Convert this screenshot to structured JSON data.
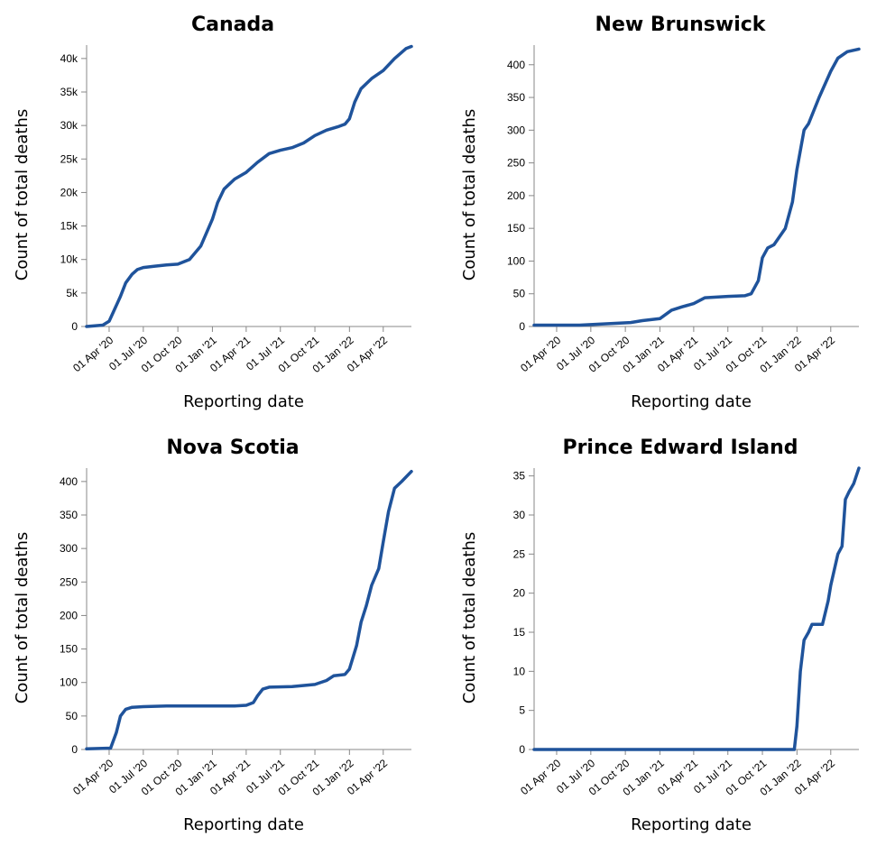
{
  "charts": [
    {
      "title": "Canada",
      "xlabel": "Reporting date",
      "ylabel": "Count of total deaths",
      "x_tick_labels": [
        "01 Apr '20",
        "01 Jul '20",
        "01 Oct '20",
        "01 Jan '21",
        "01 Apr '21",
        "01 Jul '21",
        "01 Oct '21",
        "01 Jan '22",
        "01 Apr '22"
      ],
      "y_tick_labels": [
        "0",
        "5k",
        "10k",
        "15k",
        "20k",
        "25k",
        "30k",
        "35k",
        "40k"
      ]
    },
    {
      "title": "New Brunswick",
      "xlabel": "Reporting date",
      "ylabel": "Count of total deaths",
      "x_tick_labels": [
        "01 Apr '20",
        "01 Jul '20",
        "01 Oct '20",
        "01 Jan '21",
        "01 Apr '21",
        "01 Jul '21",
        "01 Oct '21",
        "01 Jan '22",
        "01 Apr '22"
      ],
      "y_tick_labels": [
        "0",
        "50",
        "100",
        "150",
        "200",
        "250",
        "300",
        "350",
        "400"
      ]
    },
    {
      "title": "Nova Scotia",
      "xlabel": "Reporting date",
      "ylabel": "Count of total deaths",
      "x_tick_labels": [
        "01 Apr '20",
        "01 Jul '20",
        "01 Oct '20",
        "01 Jan '21",
        "01 Apr '21",
        "01 Jul '21",
        "01 Oct '21",
        "01 Jan '22",
        "01 Apr '22"
      ],
      "y_tick_labels": [
        "0",
        "50",
        "100",
        "150",
        "200",
        "250",
        "300",
        "350",
        "400"
      ]
    },
    {
      "title": "Prince Edward Island",
      "xlabel": "Reporting date",
      "ylabel": "Count of total deaths",
      "x_tick_labels": [
        "01 Apr '20",
        "01 Jul '20",
        "01 Oct '20",
        "01 Jan '21",
        "01 Apr '21",
        "01 Jul '21",
        "01 Oct '21",
        "01 Jan '22",
        "01 Apr '22"
      ],
      "y_tick_labels": [
        "0",
        "5",
        "10",
        "15",
        "20",
        "25",
        "30",
        "35"
      ]
    }
  ],
  "colors": {
    "series": "#1f539b",
    "axis": "#888888"
  },
  "chart_data": [
    {
      "type": "line",
      "title": "Canada",
      "xlabel": "Reporting date",
      "ylabel": "Count of total deaths",
      "x_ticks": [
        "2020-04-01",
        "2020-07-01",
        "2020-10-01",
        "2021-01-01",
        "2021-04-01",
        "2021-07-01",
        "2021-10-01",
        "2022-01-01",
        "2022-04-01"
      ],
      "y_ticks": [
        0,
        5000,
        10000,
        15000,
        20000,
        25000,
        30000,
        35000,
        40000
      ],
      "xlim": [
        "2020-02-01",
        "2022-06-15"
      ],
      "ylim": [
        0,
        42000
      ],
      "series": [
        {
          "x": [
            "2020-02-01",
            "2020-03-15",
            "2020-04-01",
            "2020-04-15",
            "2020-05-01",
            "2020-05-15",
            "2020-06-01",
            "2020-06-15",
            "2020-07-01",
            "2020-08-01",
            "2020-09-01",
            "2020-10-01",
            "2020-11-01",
            "2020-12-01",
            "2021-01-01",
            "2021-01-15",
            "2021-02-01",
            "2021-03-01",
            "2021-04-01",
            "2021-05-01",
            "2021-06-01",
            "2021-07-01",
            "2021-08-01",
            "2021-09-01",
            "2021-10-01",
            "2021-11-01",
            "2021-12-01",
            "2021-12-20",
            "2022-01-01",
            "2022-01-15",
            "2022-02-01",
            "2022-03-01",
            "2022-04-01",
            "2022-05-01",
            "2022-06-01",
            "2022-06-15"
          ],
          "values": [
            0,
            200,
            800,
            2500,
            4500,
            6500,
            7800,
            8500,
            8800,
            9000,
            9200,
            9300,
            10000,
            12000,
            16000,
            18500,
            20500,
            22000,
            23000,
            24500,
            25800,
            26300,
            26700,
            27400,
            28500,
            29300,
            29800,
            30200,
            31000,
            33500,
            35500,
            37000,
            38200,
            40000,
            41500,
            41800
          ]
        }
      ]
    },
    {
      "type": "line",
      "title": "New Brunswick",
      "xlabel": "Reporting date",
      "ylabel": "Count of total deaths",
      "x_ticks": [
        "2020-04-01",
        "2020-07-01",
        "2020-10-01",
        "2021-01-01",
        "2021-04-01",
        "2021-07-01",
        "2021-10-01",
        "2022-01-01",
        "2022-04-01"
      ],
      "y_ticks": [
        0,
        50,
        100,
        150,
        200,
        250,
        300,
        350,
        400
      ],
      "xlim": [
        "2020-02-01",
        "2022-06-15"
      ],
      "ylim": [
        0,
        430
      ],
      "series": [
        {
          "x": [
            "2020-02-01",
            "2020-06-01",
            "2020-10-15",
            "2020-11-15",
            "2021-01-01",
            "2021-02-01",
            "2021-03-01",
            "2021-04-01",
            "2021-05-01",
            "2021-07-01",
            "2021-08-15",
            "2021-09-01",
            "2021-09-20",
            "2021-10-01",
            "2021-10-15",
            "2021-11-01",
            "2021-12-01",
            "2021-12-20",
            "2022-01-01",
            "2022-01-20",
            "2022-02-01",
            "2022-03-01",
            "2022-04-01",
            "2022-04-20",
            "2022-05-15",
            "2022-06-15"
          ],
          "values": [
            2,
            2,
            6,
            9,
            12,
            25,
            30,
            35,
            44,
            46,
            47,
            50,
            70,
            105,
            120,
            125,
            150,
            190,
            240,
            300,
            310,
            350,
            390,
            410,
            420,
            424
          ]
        }
      ]
    },
    {
      "type": "line",
      "title": "Nova Scotia",
      "xlabel": "Reporting date",
      "ylabel": "Count of total deaths",
      "x_ticks": [
        "2020-04-01",
        "2020-07-01",
        "2020-10-01",
        "2021-01-01",
        "2021-04-01",
        "2021-07-01",
        "2021-10-01",
        "2022-01-01",
        "2022-04-01"
      ],
      "y_ticks": [
        0,
        50,
        100,
        150,
        200,
        250,
        300,
        350,
        400
      ],
      "xlim": [
        "2020-02-01",
        "2022-06-15"
      ],
      "ylim": [
        0,
        420
      ],
      "series": [
        {
          "x": [
            "2020-02-01",
            "2020-04-05",
            "2020-04-20",
            "2020-05-01",
            "2020-05-15",
            "2020-06-01",
            "2020-07-01",
            "2020-09-01",
            "2021-01-01",
            "2021-03-01",
            "2021-04-01",
            "2021-04-20",
            "2021-05-01",
            "2021-05-15",
            "2021-06-01",
            "2021-08-01",
            "2021-10-01",
            "2021-11-01",
            "2021-11-20",
            "2021-12-20",
            "2022-01-01",
            "2022-01-20",
            "2022-02-01",
            "2022-02-15",
            "2022-03-01",
            "2022-03-20",
            "2022-04-01",
            "2022-04-15",
            "2022-05-01",
            "2022-05-20",
            "2022-06-15"
          ],
          "values": [
            1,
            2,
            25,
            50,
            60,
            63,
            64,
            65,
            65,
            65,
            66,
            70,
            80,
            90,
            93,
            94,
            97,
            103,
            110,
            112,
            120,
            155,
            190,
            215,
            245,
            270,
            310,
            355,
            390,
            400,
            415
          ]
        }
      ]
    },
    {
      "type": "line",
      "title": "Prince Edward Island",
      "xlabel": "Reporting date",
      "ylabel": "Count of total deaths",
      "x_ticks": [
        "2020-04-01",
        "2020-07-01",
        "2020-10-01",
        "2021-01-01",
        "2021-04-01",
        "2021-07-01",
        "2021-10-01",
        "2022-01-01",
        "2022-04-01"
      ],
      "y_ticks": [
        0,
        5,
        10,
        15,
        20,
        25,
        30,
        35
      ],
      "xlim": [
        "2020-02-01",
        "2022-06-15"
      ],
      "ylim": [
        0,
        36
      ],
      "series": [
        {
          "x": [
            "2020-02-01",
            "2021-12-25",
            "2022-01-01",
            "2022-01-10",
            "2022-01-20",
            "2022-02-01",
            "2022-02-10",
            "2022-02-25",
            "2022-03-10",
            "2022-03-25",
            "2022-04-01",
            "2022-04-20",
            "2022-05-01",
            "2022-05-10",
            "2022-05-20",
            "2022-06-01",
            "2022-06-15"
          ],
          "values": [
            0,
            0,
            3,
            10,
            14,
            15,
            16,
            16,
            16,
            19,
            21,
            25,
            26,
            32,
            33,
            34,
            36
          ]
        }
      ]
    }
  ]
}
